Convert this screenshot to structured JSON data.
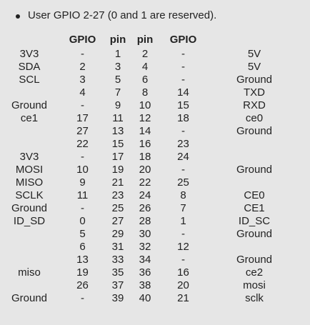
{
  "note": "User GPIO 2-27 (0 and 1 are reserved).",
  "headers": [
    "",
    "GPIO",
    "pin",
    "pin",
    "GPIO",
    ""
  ],
  "rows": [
    [
      "3V3",
      "-",
      "1",
      "2",
      "-",
      "5V"
    ],
    [
      "SDA",
      "2",
      "3",
      "4",
      "-",
      "5V"
    ],
    [
      "SCL",
      "3",
      "5",
      "6",
      "-",
      "Ground"
    ],
    [
      "",
      "4",
      "7",
      "8",
      "14",
      "TXD"
    ],
    [
      "Ground",
      "-",
      "9",
      "10",
      "15",
      "RXD"
    ],
    [
      "ce1",
      "17",
      "11",
      "12",
      "18",
      "ce0"
    ],
    [
      "",
      "27",
      "13",
      "14",
      "-",
      "Ground"
    ],
    [
      "",
      "22",
      "15",
      "16",
      "23",
      ""
    ],
    [
      "3V3",
      "-",
      "17",
      "18",
      "24",
      ""
    ],
    [
      "MOSI",
      "10",
      "19",
      "20",
      "-",
      "Ground"
    ],
    [
      "MISO",
      "9",
      "21",
      "22",
      "25",
      ""
    ],
    [
      "SCLK",
      "11",
      "23",
      "24",
      "8",
      "CE0"
    ],
    [
      "Ground",
      "-",
      "25",
      "26",
      "7",
      "CE1"
    ],
    [
      "ID_SD",
      "0",
      "27",
      "28",
      "1",
      "ID_SC"
    ],
    [
      "",
      "5",
      "29",
      "30",
      "-",
      "Ground"
    ],
    [
      "",
      "6",
      "31",
      "32",
      "12",
      ""
    ],
    [
      "",
      "13",
      "33",
      "34",
      "-",
      "Ground"
    ],
    [
      "miso",
      "19",
      "35",
      "36",
      "16",
      "ce2"
    ],
    [
      "",
      "26",
      "37",
      "38",
      "20",
      "mosi"
    ],
    [
      "Ground",
      "-",
      "39",
      "40",
      "21",
      "sclk"
    ]
  ]
}
